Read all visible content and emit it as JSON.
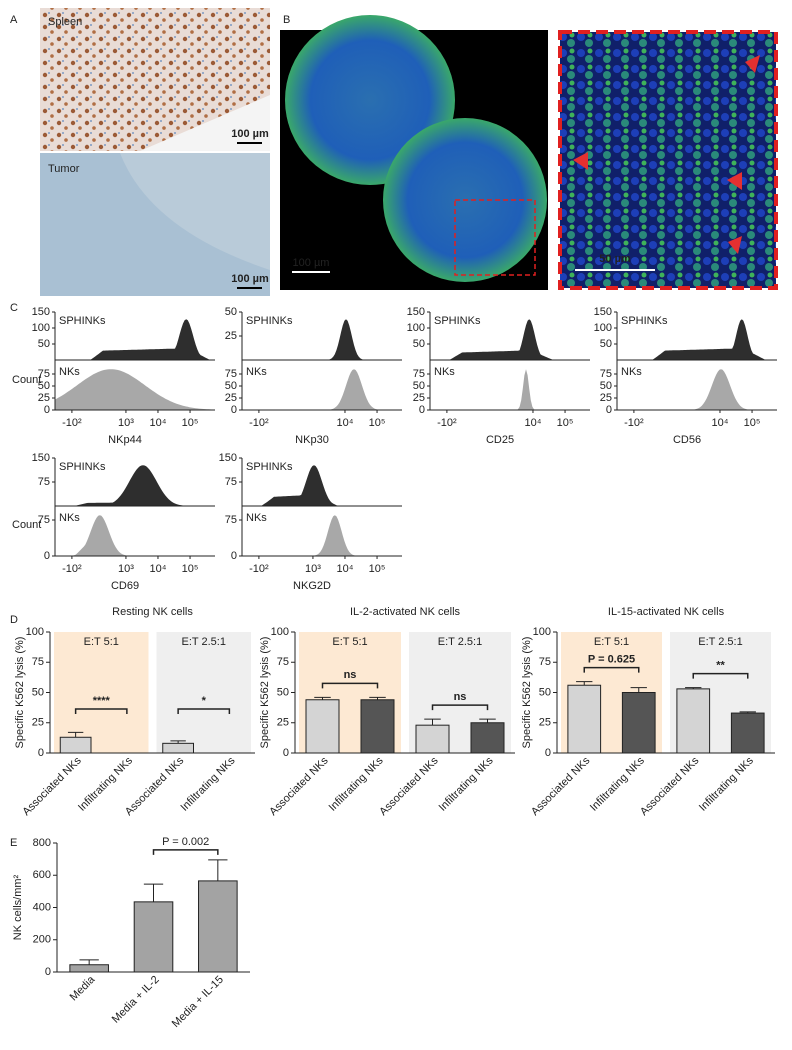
{
  "panel_labels": [
    "A",
    "B",
    "C",
    "D",
    "E"
  ],
  "panel_a": {
    "top_label": "Spleen",
    "top_scale": "100 µm",
    "bottom_label": "Tumor",
    "bottom_scale": "100 µm"
  },
  "panel_b": {
    "overview_scale": "100 µm",
    "zoom_scale": "50 µm"
  },
  "panel_c": {
    "count_labels": [
      "Count",
      "Count"
    ],
    "plots": [
      {
        "marker": "NKp44",
        "top_label": "SPHINKs",
        "bottom_label": "NKs",
        "xlim": [
          -400,
          600000
        ],
        "xticks": [
          {
            "value": -100,
            "label": "-10²"
          },
          {
            "value": 1000,
            "label": "10³"
          },
          {
            "value": 10000,
            "label": "10⁴"
          },
          {
            "value": 100000,
            "label": "10⁵"
          }
        ],
        "top_ylim": [
          0,
          150
        ],
        "top_yticks": [
          50,
          100,
          150
        ],
        "bottom_ylim": [
          0,
          100
        ],
        "bottom_yticks": [
          0,
          25,
          50,
          75
        ]
      },
      {
        "marker": "NKp30",
        "top_label": "SPHINKs",
        "bottom_label": "NKs",
        "xlim": [
          -400,
          600000
        ],
        "xticks": [
          {
            "value": -100,
            "label": "-10²"
          },
          {
            "value": 10000,
            "label": "10⁴"
          },
          {
            "value": 100000,
            "label": "10⁵"
          }
        ],
        "top_ylim": [
          0,
          50
        ],
        "top_yticks": [
          25,
          50
        ],
        "bottom_ylim": [
          0,
          100
        ],
        "bottom_yticks": [
          0,
          25,
          50,
          75
        ]
      },
      {
        "marker": "CD25",
        "top_label": "SPHINKs",
        "bottom_label": "NKs",
        "xlim": [
          -400,
          600000
        ],
        "xticks": [
          {
            "value": -100,
            "label": "-10²"
          },
          {
            "value": 10000,
            "label": "10⁴"
          },
          {
            "value": 100000,
            "label": "10⁵"
          }
        ],
        "top_ylim": [
          0,
          150
        ],
        "top_yticks": [
          50,
          100,
          150
        ],
        "bottom_ylim": [
          0,
          100
        ],
        "bottom_yticks": [
          0,
          25,
          50,
          75
        ]
      },
      {
        "marker": "CD56",
        "top_label": "SPHINKs",
        "bottom_label": "NKs",
        "xlim": [
          -400,
          600000
        ],
        "xticks": [
          {
            "value": -100,
            "label": "-10²"
          },
          {
            "value": 10000,
            "label": "10⁴"
          },
          {
            "value": 100000,
            "label": "10⁵"
          }
        ],
        "top_ylim": [
          0,
          150
        ],
        "top_yticks": [
          50,
          100,
          150
        ],
        "bottom_ylim": [
          0,
          100
        ],
        "bottom_yticks": [
          0,
          25,
          50,
          75
        ]
      },
      {
        "marker": "CD69",
        "top_label": "SPHINKs",
        "bottom_label": "NKs",
        "xlim": [
          -400,
          600000
        ],
        "xticks": [
          {
            "value": -100,
            "label": "-10²"
          },
          {
            "value": 1000,
            "label": "10³"
          },
          {
            "value": 10000,
            "label": "10⁴"
          },
          {
            "value": 100000,
            "label": "10⁵"
          }
        ],
        "top_ylim": [
          0,
          150
        ],
        "top_yticks": [
          75,
          150
        ],
        "bottom_ylim": [
          0,
          100
        ],
        "bottom_yticks": [
          0,
          75
        ]
      },
      {
        "marker": "NKG2D",
        "top_label": "SPHINKs",
        "bottom_label": "NKs",
        "xlim": [
          -400,
          600000
        ],
        "xticks": [
          {
            "value": -100,
            "label": "-10²"
          },
          {
            "value": 1000,
            "label": "10³"
          },
          {
            "value": 10000,
            "label": "10⁴"
          },
          {
            "value": 100000,
            "label": "10⁵"
          }
        ],
        "top_ylim": [
          0,
          150
        ],
        "top_yticks": [
          75,
          150
        ],
        "bottom_ylim": [
          0,
          100
        ],
        "bottom_yticks": [
          0,
          75
        ]
      }
    ]
  },
  "chart_data": [
    {
      "type": "bar",
      "title": "Resting NK cells",
      "ylabel": "Specific K562 lysis (%)",
      "categories": [
        "Associated NKs",
        "Infiltrating NKs",
        "Associated NKs",
        "Infiltrating NKs"
      ],
      "values": [
        13,
        0,
        8,
        0
      ],
      "errors": [
        4,
        0,
        2,
        0
      ],
      "colors": [
        "#d4d4d4",
        "#555555",
        "#d4d4d4",
        "#555555"
      ],
      "groups": [
        {
          "label": "E:T 5:1",
          "color": "#fde9d3"
        },
        {
          "label": "E:T 2.5:1",
          "color": "#efefef"
        }
      ],
      "significance": [
        "****",
        "*"
      ],
      "ylim": [
        0,
        100
      ],
      "yticks": [
        0,
        25,
        50,
        75,
        100
      ]
    },
    {
      "type": "bar",
      "title": "IL-2-activated NK cells",
      "ylabel": "Specific K562 lysis (%)",
      "categories": [
        "Associated NKs",
        "Infiltrating NKs",
        "Associated NKs",
        "Infiltrating NKs"
      ],
      "values": [
        44,
        44,
        23,
        25
      ],
      "errors": [
        2,
        2,
        5,
        3
      ],
      "colors": [
        "#d4d4d4",
        "#555555",
        "#d4d4d4",
        "#555555"
      ],
      "groups": [
        {
          "label": "E:T 5:1",
          "color": "#fde9d3"
        },
        {
          "label": "E:T 2.5:1",
          "color": "#efefef"
        }
      ],
      "significance": [
        "ns",
        "ns"
      ],
      "ylim": [
        0,
        100
      ],
      "yticks": [
        0,
        25,
        50,
        75,
        100
      ]
    },
    {
      "type": "bar",
      "title": "IL-15-activated NK cells",
      "ylabel": "Specific K562 lysis (%)",
      "categories": [
        "Associated NKs",
        "Infiltrating NKs",
        "Associated NKs",
        "Infiltrating NKs"
      ],
      "values": [
        56,
        50,
        53,
        33
      ],
      "errors": [
        3,
        4,
        1,
        1
      ],
      "colors": [
        "#d4d4d4",
        "#555555",
        "#d4d4d4",
        "#555555"
      ],
      "groups": [
        {
          "label": "E:T 5:1",
          "color": "#fde9d3"
        },
        {
          "label": "E:T 2.5:1",
          "color": "#efefef"
        }
      ],
      "significance": [
        "P = 0.625",
        "**"
      ],
      "ylim": [
        0,
        100
      ],
      "yticks": [
        0,
        25,
        50,
        75,
        100
      ]
    },
    {
      "type": "bar",
      "ylabel": "NK cells/mm²",
      "categories": [
        "Media",
        "Media + IL-2",
        "Media + IL-15"
      ],
      "values": [
        45,
        435,
        565
      ],
      "errors": [
        30,
        110,
        130
      ],
      "colors": [
        "#a3a3a3",
        "#a3a3a3",
        "#a3a3a3"
      ],
      "significance": [
        "P = 0.002"
      ],
      "ylim": [
        0,
        800
      ],
      "yticks": [
        0,
        200,
        400,
        600,
        800
      ]
    }
  ]
}
